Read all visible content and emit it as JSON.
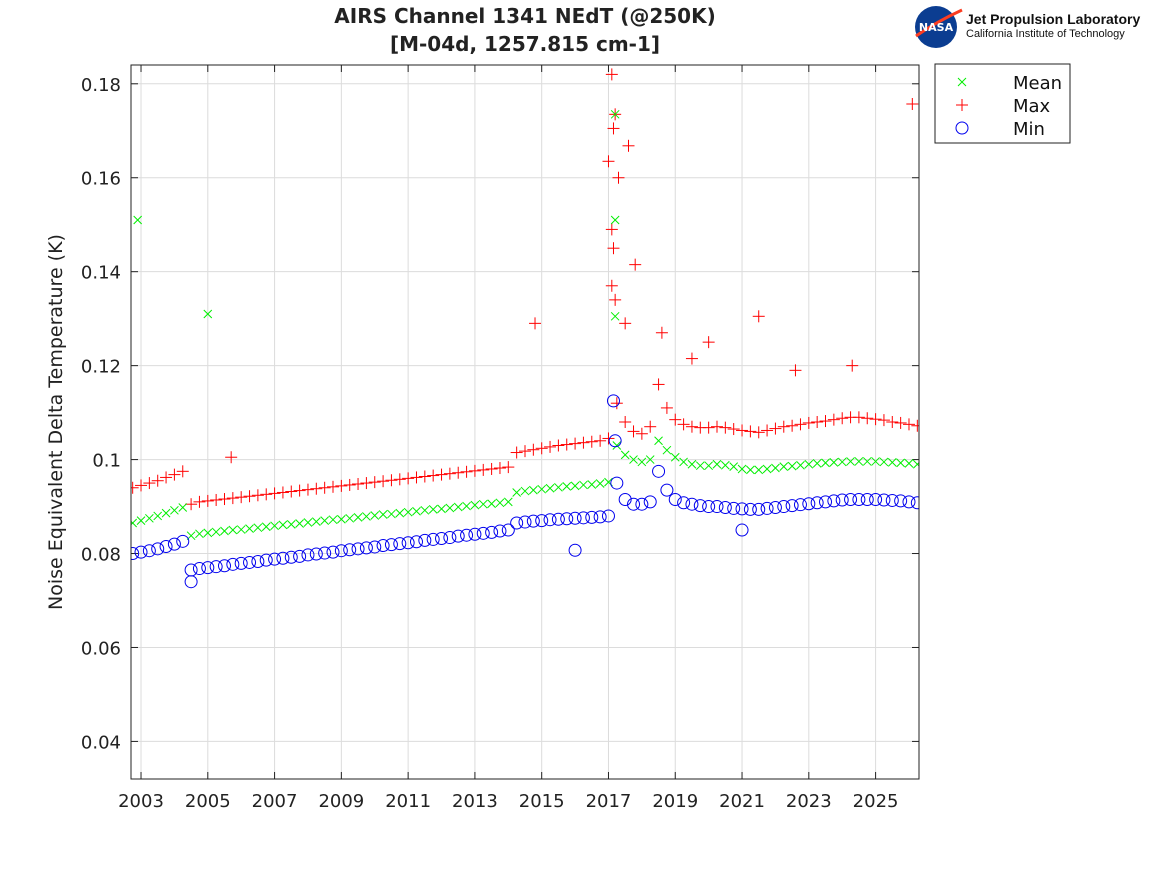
{
  "logo": {
    "nasa_text": "NASA",
    "line1": "Jet Propulsion Laboratory",
    "line2": "California Institute of Technology"
  },
  "chart_data": {
    "type": "scatter",
    "title": [
      "AIRS Channel 1341 NEdT (@250K)",
      "[M-04d, 1257.815 cm-1]"
    ],
    "xlabel": "",
    "ylabel": "Noise Equivalent Delta Temperature (K)",
    "xlim": [
      2002.7,
      2026.3
    ],
    "ylim": [
      0.032,
      0.184
    ],
    "xticks": [
      2003,
      2005,
      2007,
      2009,
      2011,
      2013,
      2015,
      2017,
      2019,
      2021,
      2023,
      2025
    ],
    "yticks": [
      0.04,
      0.06,
      0.08,
      0.1,
      0.12,
      0.14,
      0.16,
      0.18
    ],
    "ytick_labels": [
      "0.04",
      "0.06",
      "0.08",
      "0.1",
      "0.12",
      "0.14",
      "0.16",
      "0.18"
    ],
    "grid": true,
    "legend_position": "outside-top-right",
    "x": [
      2002.75,
      2003,
      2003.25,
      2003.5,
      2003.75,
      2004,
      2004.25,
      2004.5,
      2004.75,
      2005,
      2005.25,
      2005.5,
      2005.75,
      2006,
      2006.25,
      2006.5,
      2006.75,
      2007,
      2007.25,
      2007.5,
      2007.75,
      2008,
      2008.25,
      2008.5,
      2008.75,
      2009,
      2009.25,
      2009.5,
      2009.75,
      2010,
      2010.25,
      2010.5,
      2010.75,
      2011,
      2011.25,
      2011.5,
      2011.75,
      2012,
      2012.25,
      2012.5,
      2012.75,
      2013,
      2013.25,
      2013.5,
      2013.75,
      2014,
      2014.25,
      2014.5,
      2014.75,
      2015,
      2015.25,
      2015.5,
      2015.75,
      2016,
      2016.25,
      2016.5,
      2016.75,
      2017,
      2017.25,
      2017.5,
      2017.75,
      2018,
      2018.25,
      2018.5,
      2018.75,
      2019,
      2019.25,
      2019.5,
      2019.75,
      2020,
      2020.25,
      2020.5,
      2020.75,
      2021,
      2021.25,
      2021.5,
      2021.75,
      2022,
      2022.25,
      2022.5,
      2022.75,
      2023,
      2023.25,
      2023.5,
      2023.75,
      2024,
      2024.25,
      2024.5,
      2024.75,
      2025,
      2025.25,
      2025.5,
      2025.75,
      2026,
      2026.25
    ],
    "series": [
      {
        "name": "Mean",
        "marker": "x",
        "color": "#00ee00",
        "values": [
          0.0865,
          0.087,
          0.0875,
          0.088,
          0.0886,
          0.0892,
          0.0898,
          0.0838,
          0.0842,
          0.0844,
          0.0846,
          0.0848,
          0.085,
          0.0851,
          0.0853,
          0.0855,
          0.0857,
          0.0859,
          0.0861,
          0.0862,
          0.0864,
          0.0866,
          0.0868,
          0.087,
          0.0872,
          0.0873,
          0.0875,
          0.0877,
          0.0879,
          0.0881,
          0.0883,
          0.0884,
          0.0886,
          0.0888,
          0.089,
          0.0892,
          0.0894,
          0.0895,
          0.0897,
          0.0899,
          0.0901,
          0.0903,
          0.0905,
          0.0906,
          0.0908,
          0.091,
          0.093,
          0.0933,
          0.0935,
          0.0937,
          0.0939,
          0.0941,
          0.0943,
          0.0944,
          0.0946,
          0.0947,
          0.0949,
          0.0952,
          0.103,
          0.101,
          0.1,
          0.0995,
          0.1,
          0.104,
          0.102,
          0.1005,
          0.0995,
          0.099,
          0.0987,
          0.0987,
          0.099,
          0.0988,
          0.0985,
          0.098,
          0.0978,
          0.0978,
          0.098,
          0.0982,
          0.0985,
          0.0986,
          0.0988,
          0.099,
          0.0992,
          0.0993,
          0.0994,
          0.0995,
          0.0996,
          0.0996,
          0.0996,
          0.0996,
          0.0995,
          0.0994,
          0.0993,
          0.0992,
          0.099
        ],
        "outliers": [
          [
            2002.9,
            0.151
          ],
          [
            2005.0,
            0.131
          ],
          [
            2017.2,
            0.1735
          ],
          [
            2017.2,
            0.151
          ],
          [
            2017.2,
            0.1305
          ]
        ]
      },
      {
        "name": "Max",
        "marker": "+",
        "color": "#ff0000",
        "values": [
          0.094,
          0.0945,
          0.095,
          0.0955,
          0.0962,
          0.0968,
          0.0975,
          0.0905,
          0.091,
          0.0912,
          0.0914,
          0.0916,
          0.0918,
          0.092,
          0.0922,
          0.0924,
          0.0926,
          0.0928,
          0.093,
          0.0932,
          0.0934,
          0.0936,
          0.0938,
          0.094,
          0.0942,
          0.0944,
          0.0946,
          0.0948,
          0.095,
          0.0952,
          0.0954,
          0.0956,
          0.0958,
          0.096,
          0.0962,
          0.0964,
          0.0966,
          0.0968,
          0.097,
          0.0972,
          0.0974,
          0.0976,
          0.0978,
          0.098,
          0.0982,
          0.0984,
          0.1015,
          0.1018,
          0.1021,
          0.1024,
          0.1027,
          0.103,
          0.1032,
          0.1034,
          0.1036,
          0.1038,
          0.104,
          0.1045,
          0.112,
          0.108,
          0.106,
          0.1055,
          0.107,
          0.116,
          0.111,
          0.1085,
          0.1075,
          0.107,
          0.1068,
          0.1068,
          0.107,
          0.1068,
          0.1065,
          0.1062,
          0.106,
          0.1058,
          0.1062,
          0.1066,
          0.107,
          0.1072,
          0.1075,
          0.1078,
          0.108,
          0.1082,
          0.1085,
          0.1088,
          0.109,
          0.109,
          0.1088,
          0.1086,
          0.1084,
          0.108,
          0.1078,
          0.1075,
          0.1072
        ],
        "outliers": [
          [
            2017.1,
            0.182
          ],
          [
            2017.2,
            0.1735
          ],
          [
            2017.15,
            0.1705
          ],
          [
            2017.3,
            0.16
          ],
          [
            2017.6,
            0.1668
          ],
          [
            2017.0,
            0.1635
          ],
          [
            2017.1,
            0.149
          ],
          [
            2017.15,
            0.145
          ],
          [
            2017.8,
            0.1415
          ],
          [
            2017.1,
            0.137
          ],
          [
            2017.2,
            0.134
          ],
          [
            2017.5,
            0.129
          ],
          [
            2014.8,
            0.129
          ],
          [
            2018.6,
            0.127
          ],
          [
            2019.5,
            0.1215
          ],
          [
            2020.0,
            0.125
          ],
          [
            2021.5,
            0.1305
          ],
          [
            2022.6,
            0.119
          ],
          [
            2024.3,
            0.12
          ],
          [
            2026.1,
            0.1757
          ],
          [
            2005.7,
            0.1005
          ]
        ]
      },
      {
        "name": "Min",
        "marker": "o",
        "color": "#0000ee",
        "values": [
          0.08,
          0.0803,
          0.0806,
          0.081,
          0.0815,
          0.082,
          0.0826,
          0.0765,
          0.0768,
          0.077,
          0.0772,
          0.0774,
          0.0777,
          0.0779,
          0.0781,
          0.0783,
          0.0786,
          0.0788,
          0.079,
          0.0792,
          0.0794,
          0.0797,
          0.0799,
          0.0801,
          0.0803,
          0.0806,
          0.0808,
          0.081,
          0.0812,
          0.0814,
          0.0817,
          0.0819,
          0.0821,
          0.0823,
          0.0825,
          0.0828,
          0.083,
          0.0832,
          0.0834,
          0.0837,
          0.0839,
          0.0841,
          0.0843,
          0.0845,
          0.0848,
          0.085,
          0.0865,
          0.0867,
          0.0869,
          0.087,
          0.0872,
          0.0873,
          0.0874,
          0.0875,
          0.0876,
          0.0877,
          0.0878,
          0.088,
          0.095,
          0.0915,
          0.0905,
          0.0905,
          0.091,
          0.0975,
          0.0935,
          0.0915,
          0.0908,
          0.0905,
          0.0902,
          0.09,
          0.09,
          0.0898,
          0.0896,
          0.0895,
          0.0894,
          0.0894,
          0.0896,
          0.0898,
          0.09,
          0.0902,
          0.0904,
          0.0906,
          0.0908,
          0.091,
          0.0912,
          0.0914,
          0.0915,
          0.0915,
          0.0915,
          0.0915,
          0.0914,
          0.0913,
          0.0912,
          0.091,
          0.0908
        ],
        "outliers": [
          [
            2017.15,
            0.1125
          ],
          [
            2017.2,
            0.104
          ],
          [
            2016.0,
            0.0807
          ],
          [
            2021.0,
            0.085
          ],
          [
            2004.5,
            0.074
          ]
        ]
      }
    ]
  }
}
